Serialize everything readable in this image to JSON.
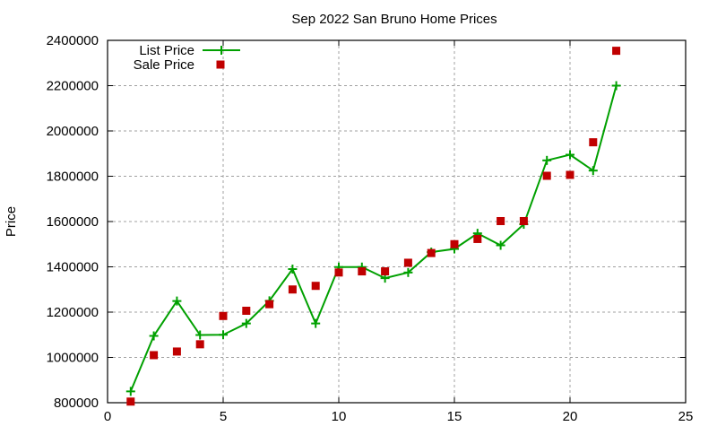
{
  "chart_data": {
    "type": "line",
    "title": "Sep 2022 San Bruno Home Prices",
    "xlabel": "",
    "ylabel": "Price",
    "xlim": [
      0,
      25
    ],
    "ylim": [
      800000,
      2400000
    ],
    "grid": true,
    "legend_position": "top-left",
    "x_ticks": [
      0,
      5,
      10,
      15,
      20,
      25
    ],
    "y_ticks": [
      800000,
      1000000,
      1200000,
      1400000,
      1600000,
      1800000,
      2000000,
      2200000,
      2400000
    ],
    "x": [
      1,
      2,
      3,
      4,
      5,
      6,
      7,
      8,
      9,
      10,
      11,
      12,
      13,
      14,
      15,
      16,
      17,
      18,
      19,
      20,
      21,
      22
    ],
    "series": [
      {
        "name": "List Price",
        "style": "linespoints",
        "marker": "plus",
        "color": "#00a000",
        "values": [
          850000,
          1095000,
          1249000,
          1099000,
          1100000,
          1150000,
          1250000,
          1390000,
          1150000,
          1399000,
          1399000,
          1350000,
          1375000,
          1465000,
          1479000,
          1548000,
          1495000,
          1588000,
          1870000,
          1895000,
          1825000,
          2200000
        ]
      },
      {
        "name": "Sale Price",
        "style": "points",
        "marker": "square",
        "color": "#c00000",
        "values": [
          805000,
          1010000,
          1026000,
          1058000,
          1183000,
          1206000,
          1235000,
          1300000,
          1316000,
          1375000,
          1380000,
          1380000,
          1418000,
          1461000,
          1500000,
          1523000,
          1602000,
          1602000,
          1802000,
          1806000,
          1950000,
          2354000
        ]
      }
    ]
  }
}
